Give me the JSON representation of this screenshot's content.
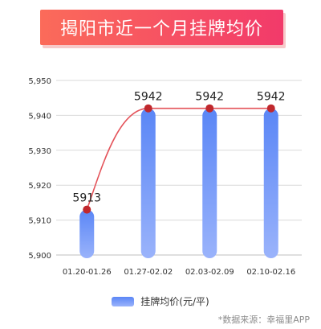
{
  "header": {
    "title": "揭阳市近一个月挂牌均价"
  },
  "legend": {
    "label": "挂牌均价(元/平)"
  },
  "source": {
    "text": "*数据来源：幸福里APP"
  },
  "colors": {
    "bar_top": "#5a86f6",
    "bar_bottom": "#9ab3fb",
    "line": "#e4535a",
    "marker": "#c0282d",
    "grid": "#d9d9d9",
    "banner_start": "#fb6b5a",
    "banner_end": "#f23a6a"
  },
  "chart_data": {
    "type": "bar",
    "categories": [
      "01.20-01.26",
      "01.27-02.02",
      "02.03-02.09",
      "02.10-02.16"
    ],
    "values": [
      5913,
      5942,
      5942,
      5942
    ],
    "data_labels": [
      "5913",
      "5942",
      "5942",
      "5942"
    ],
    "overlay_line": true,
    "ylim": [
      5900,
      5950
    ],
    "yticks": [
      5900,
      5910,
      5920,
      5930,
      5940,
      5950
    ],
    "ytick_labels": [
      "5,900",
      "5,910",
      "5,920",
      "5,930",
      "5,940",
      "5,950"
    ],
    "grid": true,
    "legend_position": "bottom",
    "series": [
      {
        "name": "挂牌均价(元/平)",
        "values": [
          5913,
          5942,
          5942,
          5942
        ]
      }
    ]
  }
}
